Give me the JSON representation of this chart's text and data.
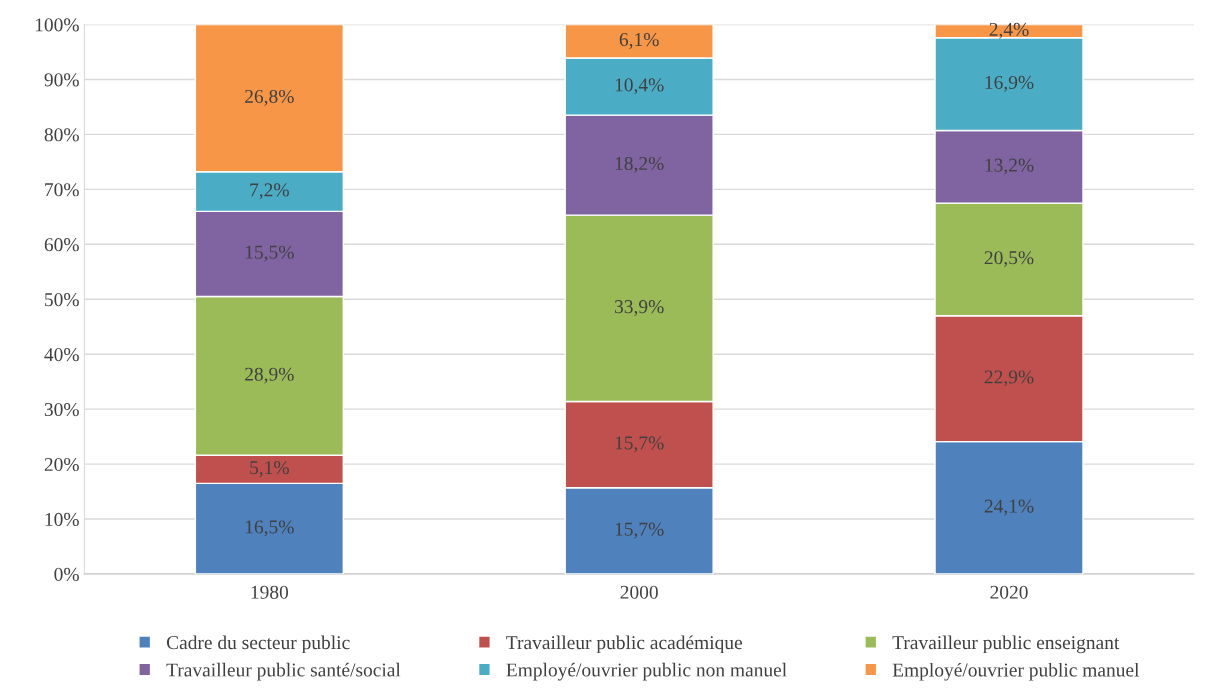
{
  "chart_data": {
    "type": "bar",
    "stacked": true,
    "categories": [
      "1980",
      "2000",
      "2020"
    ],
    "series": [
      {
        "name": "Cadre du secteur public",
        "color": "#4f81bd",
        "values": [
          16.5,
          15.7,
          24.1
        ],
        "value_labels": [
          "16,5%",
          "15,7%",
          "24,1%"
        ]
      },
      {
        "name": "Travailleur public académique",
        "color": "#c0504d",
        "values": [
          5.1,
          15.7,
          22.9
        ],
        "value_labels": [
          "5,1%",
          "15,7%",
          "22,9%"
        ]
      },
      {
        "name": "Travailleur public enseignant",
        "color": "#9bbb59",
        "values": [
          28.9,
          33.9,
          20.5
        ],
        "value_labels": [
          "28,9%",
          "33,9%",
          "20,5%"
        ]
      },
      {
        "name": "Travailleur public santé/social",
        "color": "#8064a2",
        "values": [
          15.5,
          18.2,
          13.2
        ],
        "value_labels": [
          "15,5%",
          "18,2%",
          "13,2%"
        ]
      },
      {
        "name": "Employé/ouvrier public non manuel",
        "color": "#4bacc6",
        "values": [
          7.2,
          10.4,
          16.9
        ],
        "value_labels": [
          "7,2%",
          "10,4%",
          "16,9%"
        ]
      },
      {
        "name": "Employé/ouvrier public manuel",
        "color": "#f79646",
        "values": [
          26.8,
          6.1,
          2.4
        ],
        "value_labels": [
          "26,8%",
          "6,1%",
          "2,4%"
        ]
      }
    ],
    "ylim": [
      0,
      100
    ],
    "yticks": [
      {
        "value": 0,
        "label": "0%"
      },
      {
        "value": 10,
        "label": "10%"
      },
      {
        "value": 20,
        "label": "20%"
      },
      {
        "value": 30,
        "label": "30%"
      },
      {
        "value": 40,
        "label": "40%"
      },
      {
        "value": 50,
        "label": "50%"
      },
      {
        "value": 60,
        "label": "60%"
      },
      {
        "value": 70,
        "label": "70%"
      },
      {
        "value": 80,
        "label": "80%"
      },
      {
        "value": 90,
        "label": "90%"
      },
      {
        "value": 100,
        "label": "100%"
      }
    ],
    "grid": "y",
    "legend": "bottom"
  }
}
